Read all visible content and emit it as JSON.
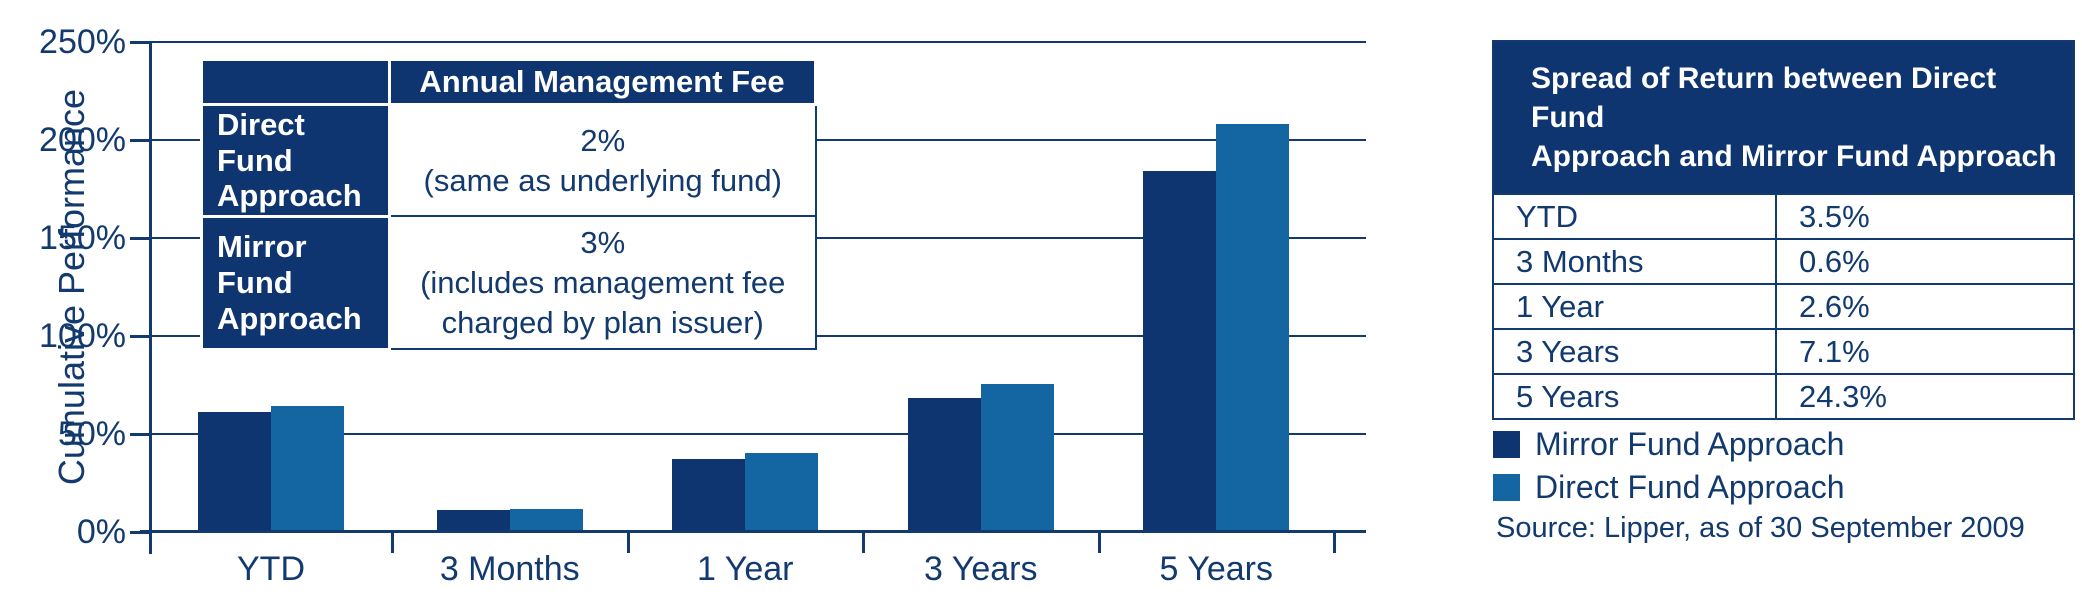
{
  "colors": {
    "navy_dark": "#0e3570",
    "blue_light": "#1466a3",
    "line_text": "#123a6e"
  },
  "chart_data": {
    "type": "bar",
    "title": "",
    "ylabel": "Cumulative Performance",
    "xlabel": "",
    "ylim": [
      0,
      250
    ],
    "ytick_step": 50,
    "ytick_labels": [
      "0%",
      "50%",
      "100%",
      "150%",
      "200%",
      "250%"
    ],
    "grid": true,
    "legend_position": "bottom-right",
    "categories": [
      "YTD",
      "3 Months",
      "1 Year",
      "3 Years",
      "5 Years"
    ],
    "series": [
      {
        "name": "Mirror Fund Approach",
        "color": "#0e3570",
        "values": [
          61,
          11,
          37.5,
          68.5,
          184
        ]
      },
      {
        "name": "Direct Fund Approach",
        "color": "#1466a3",
        "values": [
          64.5,
          11.6,
          40.1,
          75.6,
          208.3
        ]
      }
    ]
  },
  "fee_table": {
    "header": "Annual Management Fee",
    "rows": [
      {
        "label": "Direct Fund Approach",
        "fee": "2%",
        "note": "(same as underlying fund)"
      },
      {
        "label": "Mirror Fund Approach",
        "fee": "3%",
        "note": "(includes management fee charged by plan issuer)"
      }
    ]
  },
  "spread_table": {
    "title_line1": "Spread of Return between Direct Fund",
    "title_line2": "Approach and Mirror Fund Approach",
    "rows": [
      [
        "YTD",
        "3.5%"
      ],
      [
        "3 Months",
        "0.6%"
      ],
      [
        "1 Year",
        "2.6%"
      ],
      [
        "3 Years",
        "7.1%"
      ],
      [
        "5 Years",
        "24.3%"
      ]
    ]
  },
  "legend": {
    "items": [
      {
        "label": "Mirror Fund Approach",
        "color": "#0e3570"
      },
      {
        "label": "Direct Fund Approach",
        "color": "#1466a3"
      }
    ]
  },
  "source": "Source: Lipper, as of 30 September 2009"
}
